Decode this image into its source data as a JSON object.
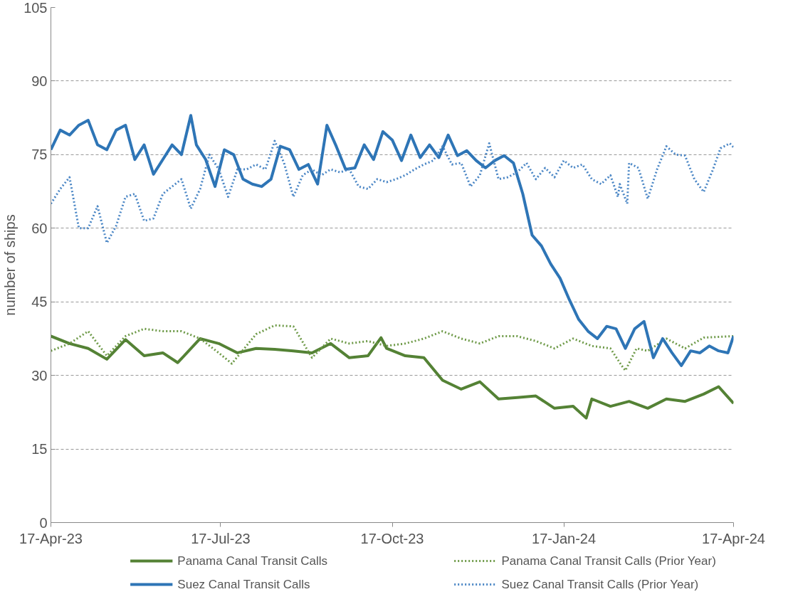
{
  "chart_data": {
    "type": "line",
    "ylabel": "number of ships",
    "xlim": [
      "2023-04-17",
      "2024-04-17"
    ],
    "xticks": [
      {
        "value": "2023-04-17",
        "label": "17-Apr-23"
      },
      {
        "value": "2023-07-17",
        "label": "17-Jul-23"
      },
      {
        "value": "2023-10-17",
        "label": "17-Oct-23"
      },
      {
        "value": "2024-01-17",
        "label": "17-Jan-24"
      },
      {
        "value": "2024-04-17",
        "label": "17-Apr-24"
      }
    ],
    "ylim": [
      0,
      105
    ],
    "yticks": [
      0,
      15,
      30,
      45,
      60,
      75,
      90,
      105
    ],
    "grid": "y",
    "legend": "bottom",
    "marker": "none",
    "series": [
      {
        "name": "Panama Canal Transit Calls",
        "color": "#548235",
        "line_style": "solid",
        "x": [
          "2023-04-17",
          "2023-04-27",
          "2023-05-07",
          "2023-05-17",
          "2023-05-27",
          "2023-06-06",
          "2023-06-16",
          "2023-06-24",
          "2023-07-06",
          "2023-07-16",
          "2023-07-26",
          "2023-08-05",
          "2023-08-15",
          "2023-08-25",
          "2023-09-04",
          "2023-09-14",
          "2023-09-24",
          "2023-10-04",
          "2023-10-11",
          "2023-10-14",
          "2023-10-24",
          "2023-11-03",
          "2023-11-13",
          "2023-11-23",
          "2023-12-03",
          "2023-12-13",
          "2023-12-23",
          "2024-01-02",
          "2024-01-12",
          "2024-01-22",
          "2024-01-29",
          "2024-02-01",
          "2024-02-11",
          "2024-02-21",
          "2024-03-02",
          "2024-03-12",
          "2024-03-22",
          "2024-04-01",
          "2024-04-09",
          "2024-04-17"
        ],
        "values": [
          38,
          36.5,
          35.5,
          33.3,
          37.3,
          34,
          34.6,
          32.6,
          37.5,
          36.5,
          34.6,
          35.5,
          35.3,
          35,
          34.6,
          36.5,
          33.6,
          34,
          37.7,
          35.5,
          34,
          33.6,
          29,
          27.2,
          28.7,
          25.2,
          25.5,
          25.8,
          23.3,
          23.7,
          21.3,
          25.2,
          23.7,
          24.7,
          23.3,
          25.2,
          24.7,
          26.2,
          27.7,
          24.3
        ]
      },
      {
        "name": "Panama Canal Transit Calls (Prior Year)",
        "color": "#6e9a48",
        "line_style": "dotted",
        "x": [
          "2023-04-17",
          "2023-04-27",
          "2023-05-07",
          "2023-05-17",
          "2023-05-27",
          "2023-06-06",
          "2023-06-16",
          "2023-06-26",
          "2023-07-06",
          "2023-07-16",
          "2023-07-23",
          "2023-08-05",
          "2023-08-15",
          "2023-08-25",
          "2023-09-04",
          "2023-09-14",
          "2023-09-24",
          "2023-10-04",
          "2023-10-14",
          "2023-10-24",
          "2023-11-03",
          "2023-11-13",
          "2023-11-23",
          "2023-12-03",
          "2023-12-13",
          "2023-12-23",
          "2024-01-02",
          "2024-01-12",
          "2024-01-22",
          "2024-02-01",
          "2024-02-11",
          "2024-02-17",
          "2024-02-19",
          "2024-02-25",
          "2024-03-02",
          "2024-03-12",
          "2024-03-22",
          "2024-04-01",
          "2024-04-17"
        ],
        "values": [
          35,
          36.5,
          39,
          34,
          38,
          39.5,
          39,
          39,
          37.5,
          34.6,
          32.4,
          38.4,
          40.2,
          40,
          33.6,
          37.5,
          36.5,
          37,
          36,
          36.5,
          37.5,
          39,
          37.5,
          36.5,
          38,
          38,
          37,
          35.5,
          37.5,
          36,
          35.5,
          32,
          31,
          35.5,
          35,
          37.5,
          35.5,
          37.7,
          38
        ]
      },
      {
        "name": "Suez Canal Transit Calls",
        "color": "#2e75b6",
        "line_style": "solid",
        "x": [
          "2023-04-17",
          "2023-04-22",
          "2023-04-27",
          "2023-05-02",
          "2023-05-07",
          "2023-05-12",
          "2023-05-17",
          "2023-05-22",
          "2023-05-27",
          "2023-06-01",
          "2023-06-06",
          "2023-06-11",
          "2023-06-16",
          "2023-06-21",
          "2023-06-26",
          "2023-07-01",
          "2023-07-04",
          "2023-07-09",
          "2023-07-14",
          "2023-07-19",
          "2023-07-24",
          "2023-07-29",
          "2023-08-03",
          "2023-08-08",
          "2023-08-13",
          "2023-08-18",
          "2023-08-23",
          "2023-08-28",
          "2023-09-02",
          "2023-09-07",
          "2023-09-12",
          "2023-09-17",
          "2023-09-22",
          "2023-09-27",
          "2023-10-02",
          "2023-10-07",
          "2023-10-12",
          "2023-10-17",
          "2023-10-22",
          "2023-10-27",
          "2023-11-01",
          "2023-11-06",
          "2023-11-11",
          "2023-11-16",
          "2023-11-21",
          "2023-11-26",
          "2023-12-01",
          "2023-12-06",
          "2023-12-11",
          "2023-12-16",
          "2023-12-21",
          "2023-12-26",
          "2023-12-31",
          "2024-01-05",
          "2024-01-10",
          "2024-01-15",
          "2024-01-20",
          "2024-01-25",
          "2024-01-30",
          "2024-02-04",
          "2024-02-09",
          "2024-02-14",
          "2024-02-19",
          "2024-02-24",
          "2024-02-29",
          "2024-03-05",
          "2024-03-10",
          "2024-03-15",
          "2024-03-20",
          "2024-03-25",
          "2024-03-30",
          "2024-04-04",
          "2024-04-09",
          "2024-04-14",
          "2024-04-17"
        ],
        "values": [
          76,
          80,
          79,
          81,
          82,
          77,
          76,
          80,
          81,
          74,
          77,
          71,
          74,
          77,
          75,
          83,
          77,
          74,
          68.5,
          76,
          75,
          70,
          69,
          68.5,
          70,
          76.7,
          76,
          72,
          73,
          69,
          81,
          76.7,
          72,
          72.3,
          77,
          74,
          79.7,
          78,
          73.8,
          79,
          74.4,
          77,
          74.4,
          79,
          74.8,
          75.8,
          73.8,
          72.3,
          73.8,
          74.8,
          73.3,
          67,
          58.6,
          56.4,
          52.7,
          49.8,
          45.4,
          41.4,
          39,
          37.5,
          40,
          39.5,
          35.5,
          39.5,
          41,
          33.6,
          37.5,
          34.6,
          32,
          35,
          34.6,
          36,
          35,
          34.6,
          38
        ]
      },
      {
        "name": "Suez Canal Transit Calls (Prior Year)",
        "color": "#4a86c5",
        "line_style": "dotted",
        "x": [
          "2023-04-17",
          "2023-04-22",
          "2023-04-27",
          "2023-05-02",
          "2023-05-07",
          "2023-05-12",
          "2023-05-17",
          "2023-05-22",
          "2023-05-27",
          "2023-06-01",
          "2023-06-06",
          "2023-06-11",
          "2023-06-16",
          "2023-06-21",
          "2023-06-26",
          "2023-07-01",
          "2023-07-06",
          "2023-07-11",
          "2023-07-16",
          "2023-07-21",
          "2023-07-26",
          "2023-07-31",
          "2023-08-05",
          "2023-08-10",
          "2023-08-15",
          "2023-08-20",
          "2023-08-25",
          "2023-08-30",
          "2023-09-04",
          "2023-09-09",
          "2023-09-14",
          "2023-09-19",
          "2023-09-24",
          "2023-09-29",
          "2023-10-04",
          "2023-10-09",
          "2023-10-14",
          "2023-10-19",
          "2023-10-24",
          "2023-10-29",
          "2023-11-03",
          "2023-11-08",
          "2023-11-13",
          "2023-11-18",
          "2023-11-23",
          "2023-11-28",
          "2023-12-03",
          "2023-12-08",
          "2023-12-13",
          "2023-12-18",
          "2023-12-23",
          "2023-12-28",
          "2024-01-02",
          "2024-01-07",
          "2024-01-12",
          "2024-01-17",
          "2024-01-22",
          "2024-01-27",
          "2024-02-01",
          "2024-02-06",
          "2024-02-11",
          "2024-02-15",
          "2024-02-16",
          "2024-02-20",
          "2024-02-21",
          "2024-02-26",
          "2024-03-02",
          "2024-03-07",
          "2024-03-12",
          "2024-03-17",
          "2024-03-22",
          "2024-03-27",
          "2024-04-01",
          "2024-04-06",
          "2024-04-10",
          "2024-04-15",
          "2024-04-17"
        ],
        "values": [
          65,
          68,
          70.4,
          60,
          60,
          64.5,
          57,
          60.5,
          66.4,
          67,
          61.5,
          62,
          67,
          68.5,
          70,
          64,
          68,
          75,
          72,
          66.4,
          72,
          72,
          73,
          72,
          77.8,
          73.3,
          66.4,
          70.8,
          72,
          70.8,
          72,
          71.4,
          72,
          68.5,
          68,
          70,
          69.4,
          70,
          70.8,
          72,
          73,
          73.8,
          76.7,
          73,
          73.3,
          68.5,
          70.8,
          77.3,
          70,
          70.4,
          71.4,
          73.3,
          70,
          72.3,
          70.4,
          73.8,
          72.3,
          73,
          70,
          69,
          70.8,
          66.4,
          69,
          65,
          73.3,
          72.3,
          66,
          72,
          76.7,
          75,
          74.8,
          70,
          67.4,
          72,
          76.3,
          77.3,
          76.5
        ]
      }
    ]
  }
}
